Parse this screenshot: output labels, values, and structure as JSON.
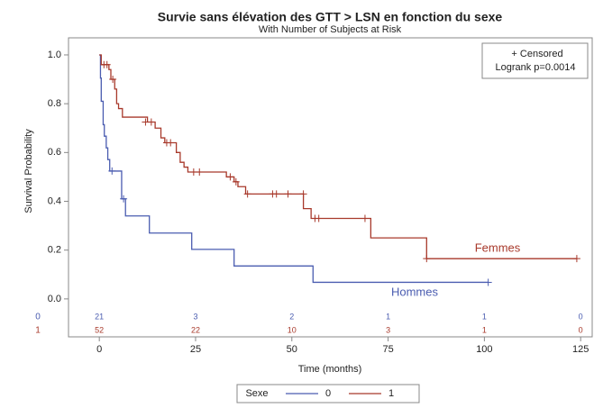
{
  "chart_data": {
    "type": "km",
    "title": "Survie sans élévation des GTT > LSN en fonction du sexe",
    "subtitle": "With Number of Subjects at Risk",
    "x_label": "Time (months)",
    "y_label": "Survival Probability",
    "annotations": [
      "+ Censored",
      "Logrank p=0.0014"
    ],
    "legend_title": "Sexe",
    "xlim": [
      -8,
      128
    ],
    "ylim": [
      -0.03,
      1.07
    ],
    "xticks": [
      0,
      25,
      50,
      75,
      100,
      125
    ],
    "yticks": [
      {
        "value": 0,
        "label": "0.0"
      },
      {
        "value": 0.2,
        "label": "0.2"
      },
      {
        "value": 0.4,
        "label": "0.4"
      },
      {
        "value": 0.6,
        "label": "0.6"
      },
      {
        "value": 0.8,
        "label": "0.8"
      },
      {
        "value": 1,
        "label": "1.0"
      }
    ],
    "series": [
      {
        "name": "0",
        "label": "Hommes",
        "color": "#4a5cb0",
        "x": [
          0,
          0.3,
          0.5,
          1,
          1.3,
          1.8,
          2.2,
          2.7,
          5.8,
          6.8,
          13,
          24,
          35,
          55.5,
          101
        ],
        "values": [
          1,
          0.905,
          0.81,
          0.714,
          0.667,
          0.619,
          0.571,
          0.524,
          0.41,
          0.34,
          0.27,
          0.203,
          0.135,
          0.068,
          0.068
        ],
        "censored_x": [
          3.3,
          6.3,
          101
        ],
        "censored_values": [
          0.524,
          0.41,
          0.068
        ],
        "at_risk": [
          21,
          3,
          2,
          1,
          1,
          0
        ]
      },
      {
        "name": "1",
        "label": "Femmes",
        "color": "#a8392b",
        "x": [
          0,
          0.5,
          2.5,
          3,
          4,
          4.5,
          5,
          6,
          12.5,
          14.5,
          16,
          17,
          20,
          21,
          22,
          23,
          33,
          35,
          36,
          38,
          53,
          55,
          70.5,
          85,
          124
        ],
        "values": [
          1,
          0.96,
          0.94,
          0.9,
          0.86,
          0.8,
          0.78,
          0.745,
          0.725,
          0.7,
          0.66,
          0.64,
          0.6,
          0.56,
          0.54,
          0.52,
          0.5,
          0.48,
          0.46,
          0.43,
          0.37,
          0.33,
          0.25,
          0.165,
          0.165
        ],
        "censored_x": [
          1.2,
          2,
          3.5,
          12,
          13.5,
          17.5,
          18.5,
          24.5,
          26,
          34,
          35.5,
          38.5,
          45,
          46,
          49,
          53,
          56,
          57,
          69,
          85,
          124
        ],
        "censored_values": [
          0.96,
          0.96,
          0.9,
          0.725,
          0.725,
          0.64,
          0.64,
          0.52,
          0.52,
          0.5,
          0.48,
          0.43,
          0.43,
          0.43,
          0.43,
          0.43,
          0.33,
          0.33,
          0.33,
          0.165,
          0.165
        ],
        "at_risk": [
          52,
          22,
          10,
          3,
          1,
          0
        ]
      }
    ]
  }
}
